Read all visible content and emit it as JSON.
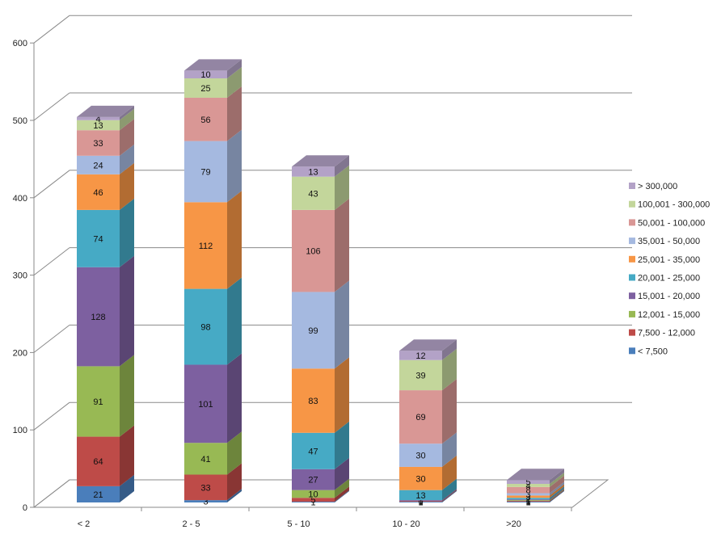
{
  "chart_data": {
    "type": "bar",
    "stacked": true,
    "three_d": true,
    "title": "",
    "xlabel": "",
    "ylabel": "",
    "ylim": [
      0,
      600
    ],
    "yticks": [
      0,
      100,
      200,
      300,
      400,
      500,
      600
    ],
    "grid": true,
    "legend_position": "right",
    "categories": [
      "< 2",
      "2 - 5",
      "5 - 10",
      "10 - 20",
      ">20"
    ],
    "series": [
      {
        "name": "< 7,500",
        "color": "#4a7ebb",
        "values": [
          21,
          3,
          1,
          1,
          1
        ]
      },
      {
        "name": "7,500 - 12,000",
        "color": "#be4b48",
        "values": [
          64,
          33,
          5,
          1,
          1
        ]
      },
      {
        "name": "12,001 - 15,000",
        "color": "#98b954",
        "values": [
          91,
          41,
          10,
          0,
          1
        ]
      },
      {
        "name": "15,001 - 20,000",
        "color": "#7d60a0",
        "values": [
          128,
          101,
          27,
          1,
          1
        ]
      },
      {
        "name": "20,001 - 25,000",
        "color": "#46aac5",
        "values": [
          74,
          98,
          47,
          13,
          2
        ]
      },
      {
        "name": "25,001 - 35,000",
        "color": "#f79646",
        "values": [
          46,
          112,
          83,
          30,
          3
        ]
      },
      {
        "name": "35,001 - 50,000",
        "color": "#a5b9e0",
        "values": [
          24,
          79,
          99,
          30,
          3
        ]
      },
      {
        "name": "50,001 - 100,000",
        "color": "#d99795",
        "values": [
          33,
          56,
          106,
          69,
          8
        ]
      },
      {
        "name": "100,001 - 300,000",
        "color": "#c3d69b",
        "values": [
          13,
          25,
          43,
          39,
          4
        ]
      },
      {
        "name": "> 300,000",
        "color": "#b3a2c7",
        "values": [
          4,
          10,
          13,
          12,
          5
        ]
      }
    ]
  }
}
